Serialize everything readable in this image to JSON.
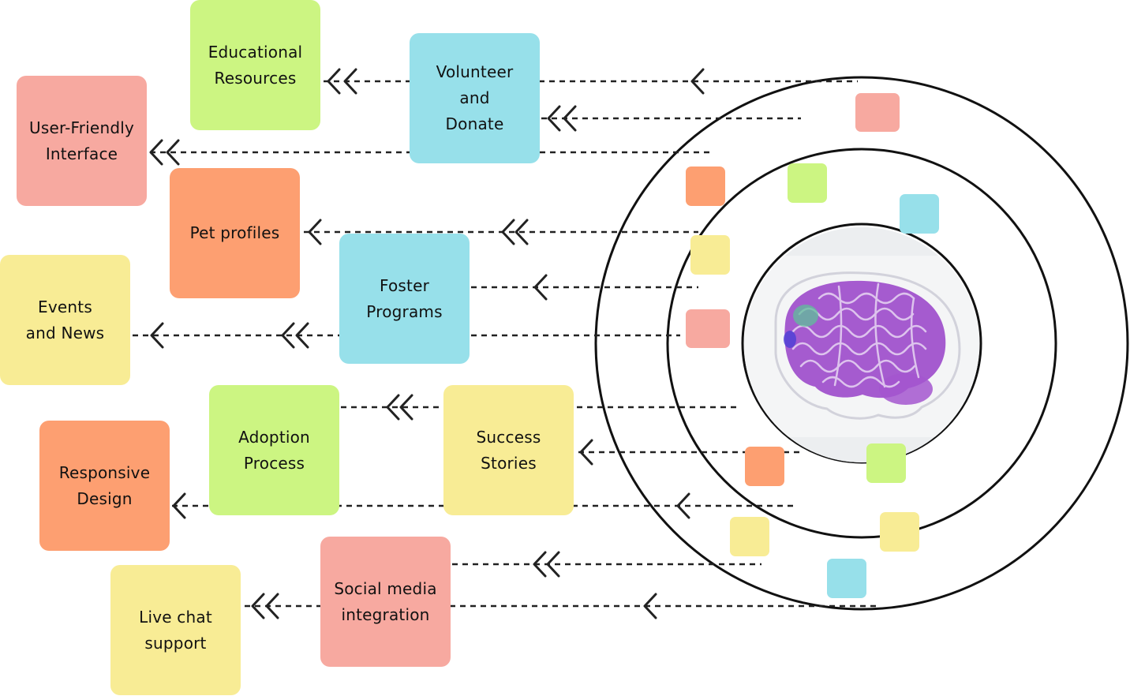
{
  "colors": {
    "green": "#ccf582",
    "blue": "#97e0ea",
    "pink": "#f7a9a0",
    "orange": "#fd9f71",
    "yellow": "#f8ec95",
    "ring": "#111111",
    "brain": "#9a45c9"
  },
  "notes": {
    "educational_resources": "Educational\nResources",
    "volunteer_donate": "Volunteer\nand\nDonate",
    "user_friendly_interface": "User-Friendly\nInterface",
    "pet_profiles": "Pet profiles",
    "foster_programs": "Foster\nPrograms",
    "events_news": "Events\nand News",
    "adoption_process": "Adoption\nProcess",
    "success_stories": "Success\nStories",
    "responsive_design": "Responsive\nDesign",
    "social_media_integration": "Social media\nintegration",
    "live_chat_support": "Live chat\nsupport"
  },
  "icons": {
    "arrow": "chevron-left-icon",
    "double_arrow": "double-chevron-left-icon",
    "center": "brain-icon"
  }
}
